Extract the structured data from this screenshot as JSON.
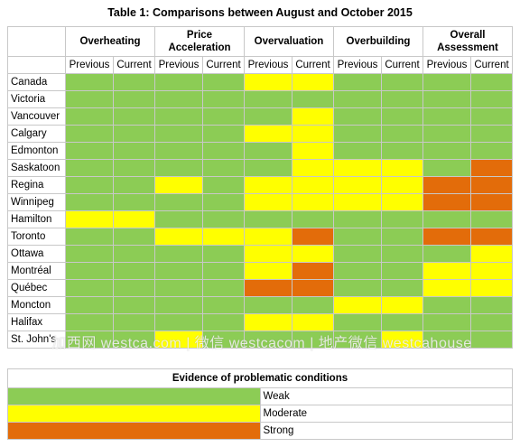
{
  "title": "Table 1: Comparisons between August and October 2015",
  "groups": [
    "Overheating",
    "Price Acceleration",
    "Overvaluation",
    "Overbuilding",
    "Overall Assessment"
  ],
  "sub_labels": {
    "previous": "Previous",
    "current": "Current"
  },
  "rows": [
    {
      "city": "Canada",
      "levels": [
        "w",
        "w",
        "w",
        "w",
        "m",
        "m",
        "w",
        "w",
        "w",
        "w"
      ]
    },
    {
      "city": "Victoria",
      "levels": [
        "w",
        "w",
        "w",
        "w",
        "w",
        "w",
        "w",
        "w",
        "w",
        "w"
      ]
    },
    {
      "city": "Vancouver",
      "levels": [
        "w",
        "w",
        "w",
        "w",
        "w",
        "m",
        "w",
        "w",
        "w",
        "w"
      ]
    },
    {
      "city": "Calgary",
      "levels": [
        "w",
        "w",
        "w",
        "w",
        "m",
        "m",
        "w",
        "w",
        "w",
        "w"
      ]
    },
    {
      "city": "Edmonton",
      "levels": [
        "w",
        "w",
        "w",
        "w",
        "w",
        "m",
        "w",
        "w",
        "w",
        "w"
      ]
    },
    {
      "city": "Saskatoon",
      "levels": [
        "w",
        "w",
        "w",
        "w",
        "w",
        "m",
        "m",
        "m",
        "w",
        "s"
      ]
    },
    {
      "city": "Regina",
      "levels": [
        "w",
        "w",
        "m",
        "w",
        "m",
        "m",
        "m",
        "m",
        "s",
        "s"
      ]
    },
    {
      "city": "Winnipeg",
      "levels": [
        "w",
        "w",
        "w",
        "w",
        "m",
        "m",
        "m",
        "m",
        "s",
        "s"
      ]
    },
    {
      "city": "Hamilton",
      "levels": [
        "m",
        "m",
        "w",
        "w",
        "w",
        "w",
        "w",
        "w",
        "w",
        "w"
      ]
    },
    {
      "city": "Toronto",
      "levels": [
        "w",
        "w",
        "m",
        "m",
        "m",
        "s",
        "w",
        "w",
        "s",
        "s"
      ]
    },
    {
      "city": "Ottawa",
      "levels": [
        "w",
        "w",
        "w",
        "w",
        "m",
        "m",
        "w",
        "w",
        "w",
        "m"
      ]
    },
    {
      "city": "Montréal",
      "levels": [
        "w",
        "w",
        "w",
        "w",
        "m",
        "s",
        "w",
        "w",
        "m",
        "m"
      ]
    },
    {
      "city": "Québec",
      "levels": [
        "w",
        "w",
        "w",
        "w",
        "s",
        "s",
        "w",
        "w",
        "m",
        "m"
      ]
    },
    {
      "city": "Moncton",
      "levels": [
        "w",
        "w",
        "w",
        "w",
        "w",
        "w",
        "m",
        "m",
        "w",
        "w"
      ]
    },
    {
      "city": "Halifax",
      "levels": [
        "w",
        "w",
        "w",
        "w",
        "m",
        "m",
        "w",
        "w",
        "w",
        "w"
      ]
    },
    {
      "city": "St. John's",
      "levels": [
        "w",
        "w",
        "m",
        "w",
        "w",
        "w",
        "w",
        "m",
        "w",
        "w"
      ]
    }
  ],
  "watermark": "加西网 westca.com | 微信 westcacom | 地产微信 westcahouse",
  "legend": {
    "title": "Evidence of problematic conditions",
    "items": [
      {
        "label": "Weak",
        "color": "#8ccc55"
      },
      {
        "label": "Moderate",
        "color": "#ffff00"
      },
      {
        "label": "Strong",
        "color": "#e36c0a"
      }
    ]
  }
}
